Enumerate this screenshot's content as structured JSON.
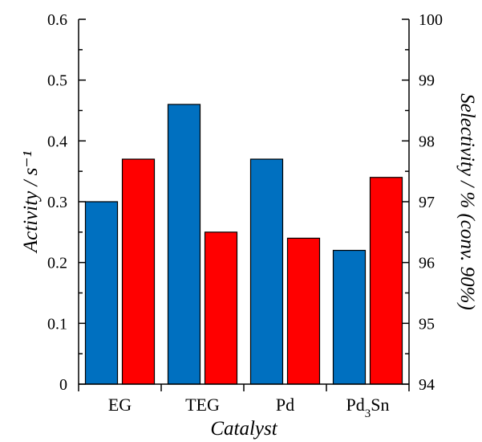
{
  "chart_data": {
    "type": "bar",
    "categories": [
      "EG",
      "TEG",
      "Pd",
      "Pd₃Sn"
    ],
    "series": [
      {
        "values": [
          0.3,
          0.46,
          0.37,
          0.22
        ],
        "color": "#0070C0",
        "axis": "left"
      },
      {
        "values": [
          97.7,
          96.5,
          96.4,
          97.4
        ],
        "color": "#FF0000",
        "axis": "right"
      }
    ],
    "xlabel": "Catalyst",
    "ylabel": "Activity / s⁻¹",
    "ylabel2": "Selectivity / % (conv. 90%)",
    "ylim": [
      0,
      0.6
    ],
    "ylim2": [
      94,
      100
    ],
    "yticks": [
      "0",
      "0.1",
      "0.2",
      "0.3",
      "0.4",
      "0.5",
      "0.6"
    ],
    "yticks2": [
      "94",
      "95",
      "96",
      "97",
      "98",
      "99",
      "100"
    ],
    "grid": false,
    "legend": "none"
  }
}
